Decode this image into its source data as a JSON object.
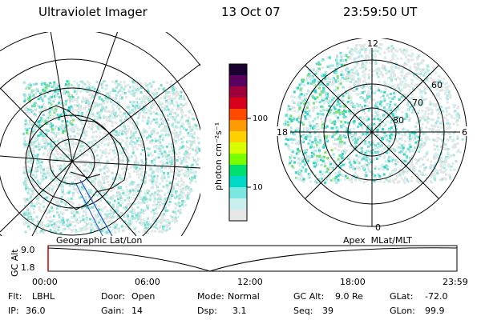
{
  "header": {
    "title": "Ultraviolet Imager",
    "date": "13 Oct 07",
    "time": "23:59:50 UT"
  },
  "left_map": {
    "label": "Geographic Lat/Lon"
  },
  "right_map": {
    "label": "Apex  MLat/MLT",
    "mlt_labels": {
      "top": "12",
      "left": "18",
      "right": "6",
      "bottom": "0"
    },
    "lat_labels": [
      "60",
      "70",
      "80"
    ]
  },
  "colorbar": {
    "unit_label": "photon cm⁻²s⁻¹",
    "ticks": [
      "100",
      "10"
    ],
    "colors": [
      "#1a0030",
      "#5a0060",
      "#a0003a",
      "#d8001a",
      "#ff4a00",
      "#ff9a00",
      "#ffd000",
      "#d8ff00",
      "#7aff00",
      "#00e070",
      "#00d8c8",
      "#7ae8e0",
      "#c8f0ee",
      "#e6e6e6"
    ]
  },
  "altitude_plot": {
    "ylabel": "GC Alt",
    "y_ticks": [
      "9.0",
      "1.8"
    ],
    "x_ticks": [
      "00:00",
      "06:00",
      "12:00",
      "18:00",
      "23:59"
    ]
  },
  "info": {
    "row1": [
      {
        "key": "Flt:",
        "value": "LBHL"
      },
      {
        "key": "Door:",
        "value": "Open"
      },
      {
        "key": "Mode:",
        "value": "Normal"
      },
      {
        "key": "GC Alt:",
        "value": "9.0 Re"
      },
      {
        "key": "GLat:",
        "value": "-72.0"
      }
    ],
    "row2": [
      {
        "key": "IP:",
        "value": "36.0"
      },
      {
        "key": "Gain:",
        "value": "14"
      },
      {
        "key": "Dsp:",
        "value": "3.1"
      },
      {
        "key": "Seq:",
        "value": "39"
      },
      {
        "key": "GLon:",
        "value": "99.9"
      }
    ]
  }
}
